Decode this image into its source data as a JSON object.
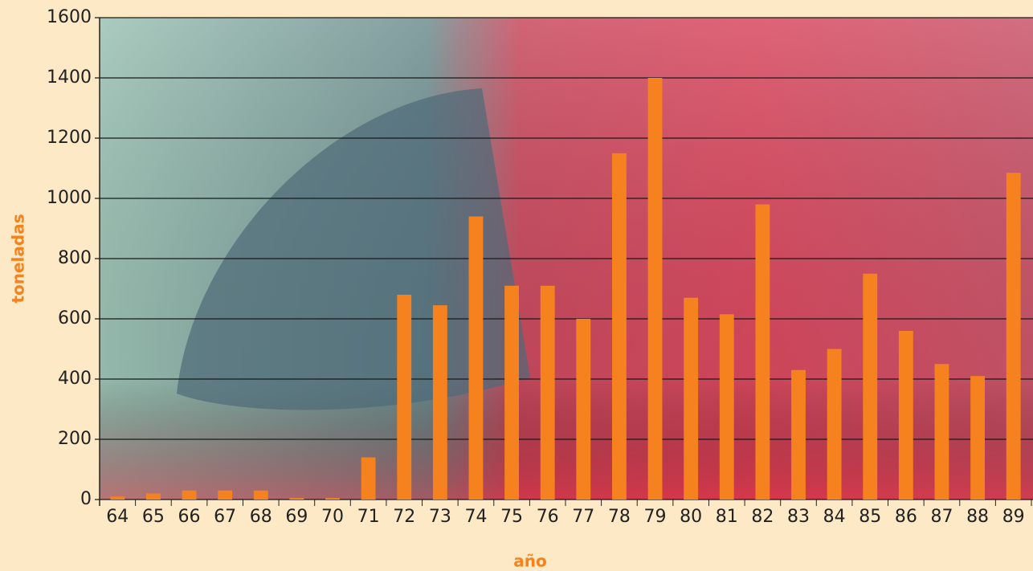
{
  "chart_data": {
    "type": "bar",
    "x_label": "año",
    "y_label": "toneladas",
    "categories": [
      "64",
      "65",
      "66",
      "67",
      "68",
      "69",
      "70",
      "71",
      "72",
      "73",
      "74",
      "75",
      "76",
      "77",
      "78",
      "79",
      "80",
      "81",
      "82",
      "83",
      "84",
      "85",
      "86",
      "87",
      "88",
      "89"
    ],
    "values": [
      10,
      20,
      30,
      30,
      30,
      5,
      5,
      140,
      680,
      645,
      940,
      710,
      710,
      600,
      1150,
      1400,
      670,
      615,
      980,
      430,
      500,
      750,
      560,
      450,
      410,
      1085
    ],
    "color": "#f5821f",
    "ylim": [
      0,
      1600
    ],
    "yticks": [
      0,
      200,
      400,
      600,
      800,
      1000,
      1200,
      1400,
      1600
    ],
    "grid": true
  }
}
